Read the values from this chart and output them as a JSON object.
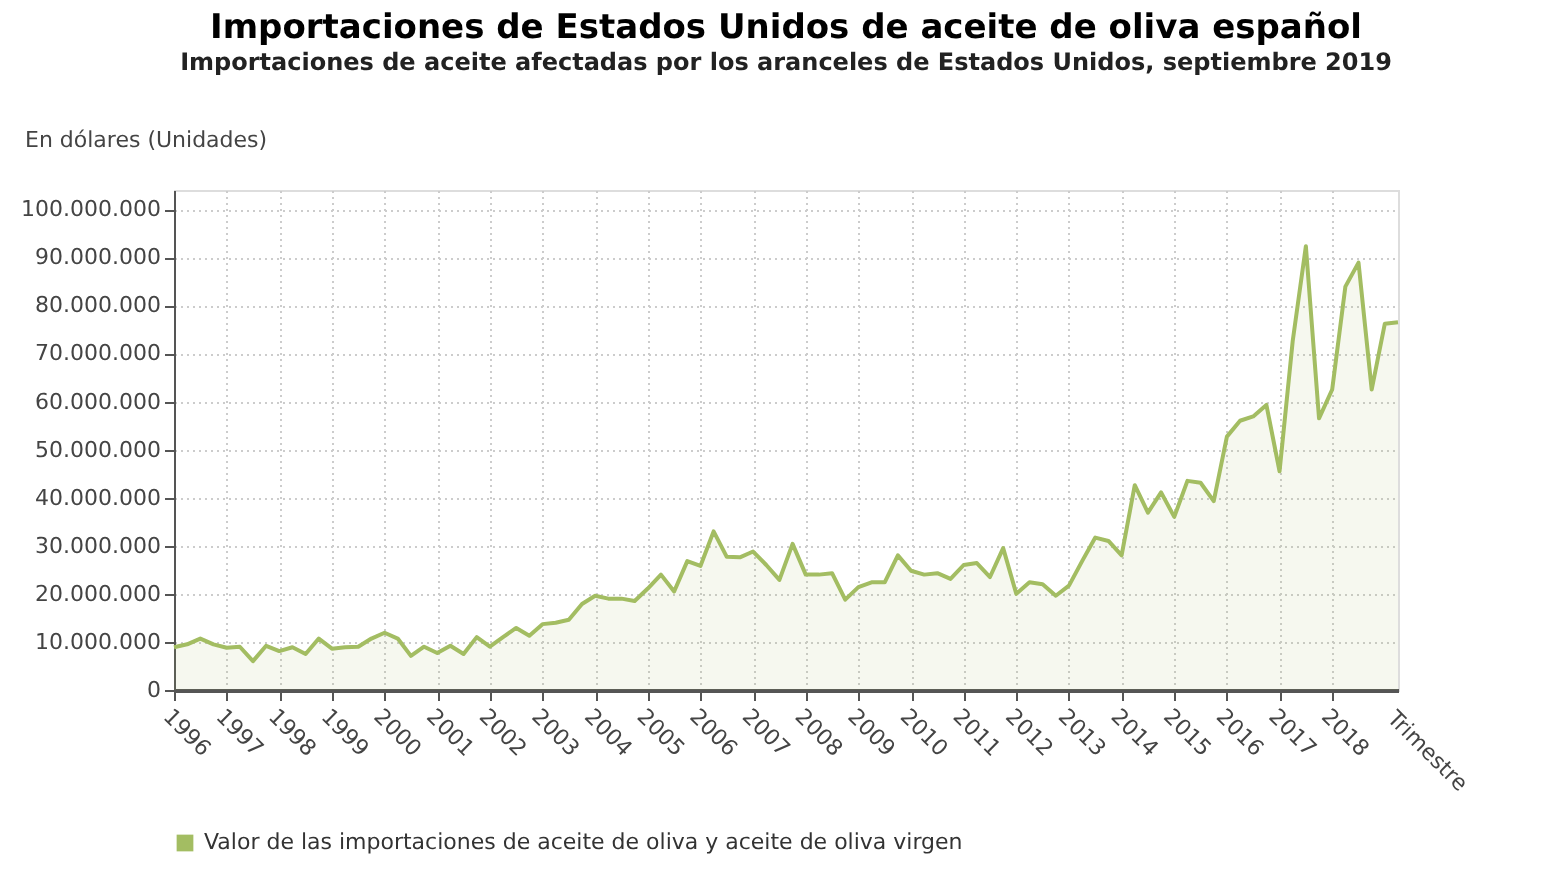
{
  "chart_data": {
    "type": "area",
    "title": "Importaciones de Estados Unidos de aceite de oliva español",
    "subtitle": "Importaciones de aceite afectadas por los aranceles de Estados Unidos, septiembre 2019",
    "ylabel": "En dólares (Unidades)",
    "xlabel": "Trimestre",
    "x": [
      1996,
      1996.25,
      1996.5,
      1996.75,
      1997,
      1997.25,
      1997.5,
      1997.75,
      1998,
      1998.25,
      1998.5,
      1998.75,
      1999,
      1999.25,
      1999.5,
      1999.75,
      2000,
      2000.25,
      2000.5,
      2000.75,
      2001,
      2001.25,
      2001.5,
      2001.75,
      2002,
      2002.25,
      2002.5,
      2002.75,
      2003,
      2003.25,
      2003.5,
      2003.75,
      2004,
      2004.25,
      2004.5,
      2004.75,
      2005,
      2005.25,
      2005.5,
      2005.75,
      2006,
      2006.25,
      2006.5,
      2006.75,
      2007,
      2007.25,
      2007.5,
      2007.75,
      2008,
      2008.25,
      2008.5,
      2008.75,
      2009,
      2009.25,
      2009.5,
      2009.75,
      2010,
      2010.25,
      2010.5,
      2010.75,
      2011,
      2011.25,
      2011.5,
      2011.75,
      2012,
      2012.25,
      2012.5,
      2012.75,
      2013,
      2013.25,
      2013.5,
      2013.75,
      2014,
      2014.25,
      2014.5,
      2014.75,
      2015,
      2015.25,
      2015.5,
      2015.75,
      2016,
      2016.25,
      2016.5,
      2016.75,
      2017,
      2017.25,
      2017.5,
      2017.75,
      2018,
      2018.25,
      2018.5,
      2018.75,
      2019,
      2019.25
    ],
    "series": [
      {
        "name": "Valor de las importaciones de aceite de oliva y aceite de oliva virgen",
        "color": "#a3bd62",
        "values": [
          8900000,
          9500000,
          10700000,
          9500000,
          8800000,
          9000000,
          6000000,
          9200000,
          8100000,
          8900000,
          7500000,
          10700000,
          8600000,
          8900000,
          9000000,
          10700000,
          11900000,
          10700000,
          7100000,
          9000000,
          7700000,
          9200000,
          7500000,
          11000000,
          9000000,
          11000000,
          12900000,
          11300000,
          13700000,
          14000000,
          14600000,
          17900000,
          19600000,
          19000000,
          19000000,
          18500000,
          21100000,
          24000000,
          20500000,
          26800000,
          25800000,
          33000000,
          27700000,
          27600000,
          28800000,
          26000000,
          22900000,
          30400000,
          24000000,
          24000000,
          24300000,
          18800000,
          21400000,
          22400000,
          22400000,
          28000000,
          24800000,
          24000000,
          24300000,
          23100000,
          26000000,
          26400000,
          23500000,
          29500000,
          20000000,
          22400000,
          22000000,
          19600000,
          21700000,
          26800000,
          31700000,
          31000000,
          28000000,
          42600000,
          36900000,
          41100000,
          36000000,
          43500000,
          43100000,
          39300000,
          52700000,
          56000000,
          56900000,
          59300000,
          45500000,
          72600000,
          92300000,
          56500000,
          62500000,
          83900000,
          88900000,
          62500000,
          76200000,
          76500000
        ]
      }
    ],
    "xlim": [
      1996,
      2019.25
    ],
    "xticks": [
      1996,
      1997,
      1998,
      1999,
      2000,
      2001,
      2002,
      2003,
      2004,
      2005,
      2006,
      2007,
      2008,
      2009,
      2010,
      2011,
      2012,
      2013,
      2014,
      2015,
      2016,
      2017,
      2018
    ],
    "ylim": [
      0,
      104000000
    ],
    "yticks": [
      {
        "value": 0,
        "label": "0"
      },
      {
        "value": 10000000,
        "label": "10.000.000"
      },
      {
        "value": 20000000,
        "label": "20.000.000"
      },
      {
        "value": 30000000,
        "label": "30.000.000"
      },
      {
        "value": 40000000,
        "label": "40.000.000"
      },
      {
        "value": 50000000,
        "label": "50.000.000"
      },
      {
        "value": 60000000,
        "label": "60.000.000"
      },
      {
        "value": 70000000,
        "label": "70.000.000"
      },
      {
        "value": 80000000,
        "label": "80.000.000"
      },
      {
        "value": 90000000,
        "label": "90.000.000"
      },
      {
        "value": 100000000,
        "label": "100.000.000"
      }
    ],
    "grid": true,
    "legend": "bottom",
    "line_style": "dotted",
    "marker": "none"
  }
}
